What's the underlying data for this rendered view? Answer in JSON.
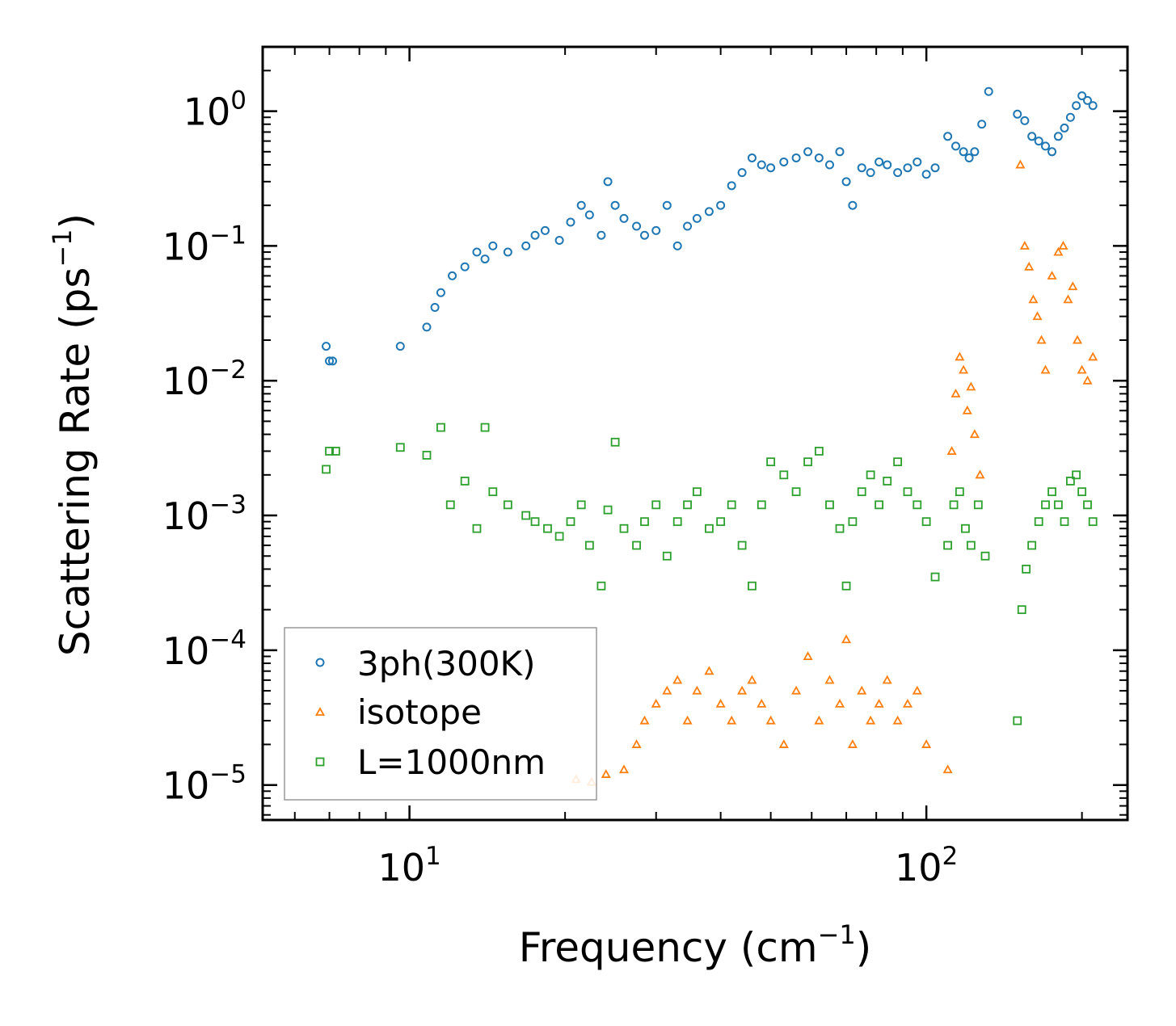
{
  "chart_data": {
    "type": "scatter",
    "title": "",
    "xlabel": "Frequency (cm",
    "xlabel_sup": "−1",
    "xlabel_end": ")",
    "ylabel": "Scattering Rate (ps",
    "ylabel_sup": "−1",
    "ylabel_end": ")",
    "xscale": "log",
    "yscale": "log",
    "xlim": [
      5.2,
      245
    ],
    "ylim": [
      5.5e-06,
      3.0
    ],
    "xticks": [
      {
        "base": "10",
        "exp": "1",
        "value": 10
      },
      {
        "base": "10",
        "exp": "2",
        "value": 100
      }
    ],
    "yticks": [
      {
        "base": "10",
        "exp": "0",
        "value": 1
      },
      {
        "base": "10",
        "exp": "−1",
        "value": 0.1
      },
      {
        "base": "10",
        "exp": "−2",
        "value": 0.01
      },
      {
        "base": "10",
        "exp": "−3",
        "value": 0.001
      },
      {
        "base": "10",
        "exp": "−4",
        "value": 0.0001
      },
      {
        "base": "10",
        "exp": "−5",
        "value": 1e-05
      }
    ],
    "legend_position": "bottom-left",
    "series": [
      {
        "name": "3ph(300K)",
        "marker": "circle",
        "color": "#1f77b4",
        "x": [
          6.9,
          7.0,
          7.1,
          9.6,
          10.8,
          11.2,
          11.5,
          12.1,
          12.8,
          13.5,
          14.0,
          14.5,
          15.5,
          16.8,
          17.5,
          18.3,
          19.5,
          20.5,
          21.5,
          22.3,
          23.5,
          24.2,
          25.0,
          26.0,
          27.5,
          28.5,
          30.0,
          31.5,
          33.0,
          34.5,
          36.0,
          38.0,
          40.0,
          42.0,
          44.0,
          46.0,
          48.0,
          50.0,
          53.0,
          56.0,
          59.0,
          62.0,
          65.0,
          68.0,
          70.0,
          72.0,
          75.0,
          78.0,
          81.0,
          84.0,
          88.0,
          92.0,
          96.0,
          100.0,
          104.0,
          110.0,
          114.0,
          118.0,
          121.0,
          124.0,
          128.0,
          132.0,
          150.0,
          155.0,
          160.0,
          165.0,
          170.0,
          175.0,
          180.0,
          185.0,
          190.0,
          195.0,
          200.0,
          205.0,
          210.0
        ],
        "y": [
          0.018,
          0.014,
          0.014,
          0.018,
          0.025,
          0.035,
          0.045,
          0.06,
          0.07,
          0.09,
          0.08,
          0.1,
          0.09,
          0.1,
          0.12,
          0.13,
          0.11,
          0.15,
          0.2,
          0.17,
          0.12,
          0.3,
          0.2,
          0.16,
          0.14,
          0.12,
          0.13,
          0.2,
          0.1,
          0.14,
          0.16,
          0.18,
          0.2,
          0.28,
          0.35,
          0.45,
          0.4,
          0.38,
          0.42,
          0.45,
          0.5,
          0.45,
          0.4,
          0.5,
          0.3,
          0.2,
          0.38,
          0.35,
          0.42,
          0.4,
          0.35,
          0.38,
          0.42,
          0.34,
          0.38,
          0.65,
          0.55,
          0.5,
          0.45,
          0.5,
          0.8,
          1.4,
          0.95,
          0.85,
          0.65,
          0.6,
          0.55,
          0.5,
          0.65,
          0.75,
          0.9,
          1.1,
          1.3,
          1.2,
          1.1
        ]
      },
      {
        "name": "isotope",
        "marker": "triangle",
        "color": "#ff7f0e",
        "x": [
          21.0,
          22.5,
          24.0,
          26.0,
          27.5,
          28.5,
          30.0,
          31.5,
          33.0,
          34.5,
          36.0,
          38.0,
          40.0,
          42.0,
          44.0,
          46.0,
          48.0,
          50.0,
          53.0,
          56.0,
          59.0,
          62.0,
          65.0,
          68.0,
          70.0,
          72.0,
          75.0,
          78.0,
          81.0,
          84.0,
          88.0,
          92.0,
          96.0,
          100.0,
          110.0,
          112.0,
          114.0,
          116.0,
          118.0,
          120.0,
          122.0,
          124.0,
          127.0,
          152.0,
          155.0,
          158.0,
          161.0,
          164.0,
          167.0,
          170.0,
          175.0,
          180.0,
          184.0,
          188.0,
          192.0,
          196.0,
          200.0,
          205.0,
          210.0
        ],
        "y": [
          1.1e-05,
          1.05e-05,
          1.2e-05,
          1.3e-05,
          2e-05,
          3e-05,
          4e-05,
          5e-05,
          6e-05,
          3e-05,
          5e-05,
          7e-05,
          4e-05,
          3e-05,
          5e-05,
          6e-05,
          4e-05,
          3e-05,
          2e-05,
          5e-05,
          9e-05,
          3e-05,
          6e-05,
          4e-05,
          0.00012,
          2e-05,
          5e-05,
          3e-05,
          4e-05,
          6e-05,
          3e-05,
          4e-05,
          5e-05,
          2e-05,
          1.3e-05,
          0.003,
          0.008,
          0.015,
          0.012,
          0.006,
          0.009,
          0.004,
          0.002,
          0.4,
          0.1,
          0.07,
          0.04,
          0.03,
          0.02,
          0.012,
          0.06,
          0.09,
          0.1,
          0.04,
          0.05,
          0.02,
          0.012,
          0.01,
          0.015
        ]
      },
      {
        "name": "L=1000nm",
        "marker": "square",
        "color": "#2ca02c",
        "x": [
          6.9,
          7.0,
          7.2,
          9.6,
          10.8,
          11.5,
          12.0,
          12.8,
          13.5,
          14.0,
          14.5,
          15.5,
          16.8,
          17.5,
          18.5,
          19.5,
          20.5,
          21.5,
          22.3,
          23.5,
          24.2,
          25.0,
          26.0,
          27.5,
          28.5,
          30.0,
          31.5,
          33.0,
          34.5,
          36.0,
          38.0,
          40.0,
          42.0,
          44.0,
          46.0,
          48.0,
          50.0,
          53.0,
          56.0,
          59.0,
          62.0,
          65.0,
          68.0,
          70.0,
          72.0,
          75.0,
          78.0,
          81.0,
          84.0,
          88.0,
          92.0,
          96.0,
          100.0,
          104.0,
          110.0,
          113.0,
          116.0,
          119.0,
          122.0,
          126.0,
          130.0,
          150.0,
          153.0,
          156.0,
          160.0,
          165.0,
          170.0,
          175.0,
          180.0,
          185.0,
          190.0,
          195.0,
          200.0,
          205.0,
          210.0
        ],
        "y": [
          0.0022,
          0.003,
          0.003,
          0.0032,
          0.0028,
          0.0045,
          0.0012,
          0.0018,
          0.0008,
          0.0045,
          0.0015,
          0.0012,
          0.001,
          0.0009,
          0.0008,
          0.0007,
          0.0009,
          0.0012,
          0.0006,
          0.0003,
          0.0011,
          0.0035,
          0.0008,
          0.0006,
          0.0009,
          0.0012,
          0.0005,
          0.0009,
          0.0012,
          0.0015,
          0.0008,
          0.0009,
          0.0012,
          0.0006,
          0.0003,
          0.0012,
          0.0025,
          0.002,
          0.0015,
          0.0025,
          0.003,
          0.0012,
          0.0008,
          0.0003,
          0.0009,
          0.0015,
          0.002,
          0.0012,
          0.0018,
          0.0025,
          0.0015,
          0.0012,
          0.0009,
          0.00035,
          0.0006,
          0.0012,
          0.0015,
          0.0008,
          0.0006,
          0.0012,
          0.0005,
          3e-05,
          0.0002,
          0.0004,
          0.0006,
          0.0009,
          0.0012,
          0.0015,
          0.0012,
          0.0009,
          0.0018,
          0.002,
          0.0015,
          0.0012,
          0.0009
        ]
      }
    ]
  }
}
